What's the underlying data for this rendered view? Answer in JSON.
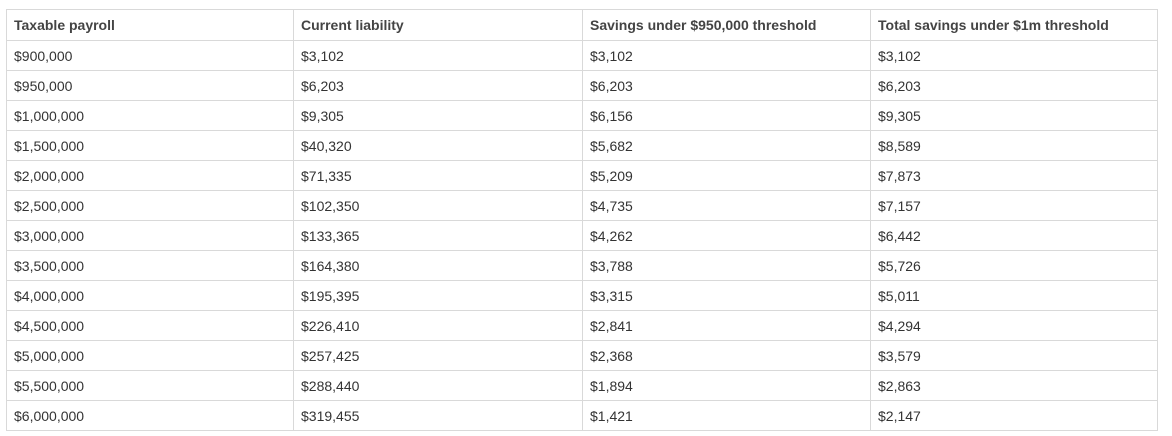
{
  "table": {
    "headers": [
      "Taxable payroll",
      "Current liability",
      "Savings under $950,000 threshold",
      "Total savings under $1m threshold"
    ],
    "rows": [
      [
        "$900,000",
        "$3,102",
        "$3,102",
        "$3,102"
      ],
      [
        "$950,000",
        "$6,203",
        "$6,203",
        "$6,203"
      ],
      [
        "$1,000,000",
        "$9,305",
        "$6,156",
        "$9,305"
      ],
      [
        "$1,500,000",
        "$40,320",
        "$5,682",
        "$8,589"
      ],
      [
        "$2,000,000",
        "$71,335",
        "$5,209",
        "$7,873"
      ],
      [
        "$2,500,000",
        "$102,350",
        "$4,735",
        "$7,157"
      ],
      [
        "$3,000,000",
        "$133,365",
        "$4,262",
        "$6,442"
      ],
      [
        "$3,500,000",
        "$164,380",
        "$3,788",
        "$5,726"
      ],
      [
        "$4,000,000",
        "$195,395",
        "$3,315",
        "$5,011"
      ],
      [
        "$4,500,000",
        "$226,410",
        "$2,841",
        "$4,294"
      ],
      [
        "$5,000,000",
        "$257,425",
        "$2,368",
        "$3,579"
      ],
      [
        "$5,500,000",
        "$288,440",
        "$1,894",
        "$2,863"
      ],
      [
        "$6,000,000",
        "$319,455",
        "$1,421",
        "$2,147"
      ]
    ]
  }
}
